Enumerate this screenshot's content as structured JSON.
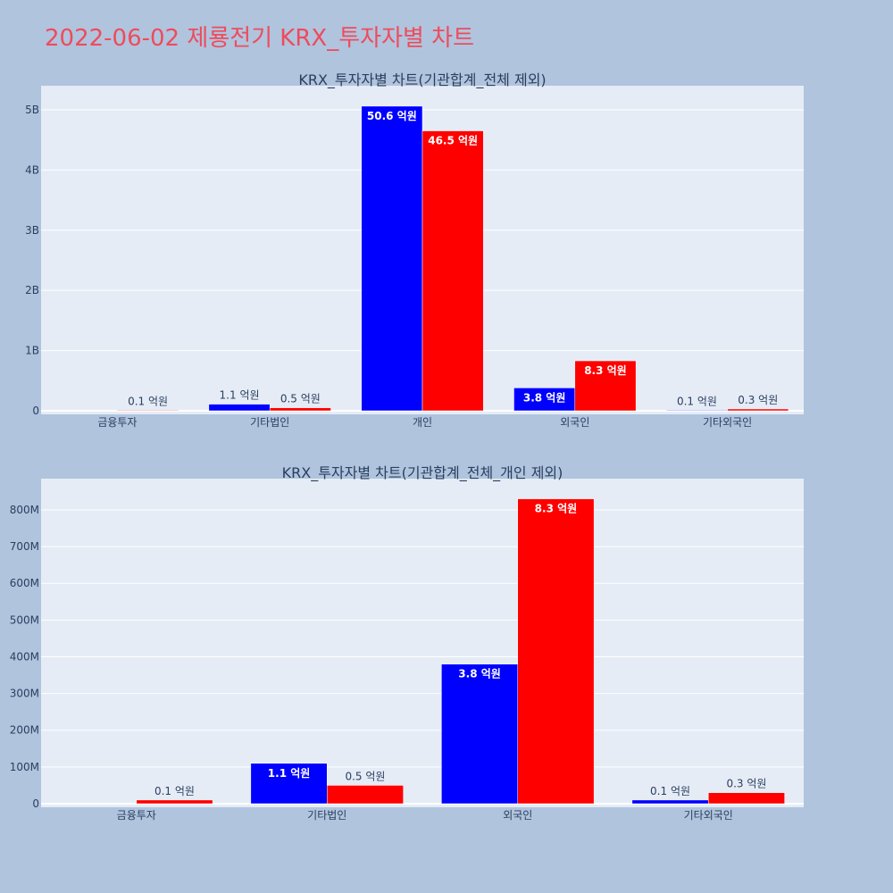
{
  "page": {
    "title": "2022-06-02 제룡전기 KRX_투자자별 차트",
    "colors": {
      "background": "#b0c4de",
      "plot_bg": "#e5ecf6",
      "title": "#ef4b5c",
      "text": "#2a3f5f",
      "buy": "#0000ff",
      "sell": "#ff0000"
    }
  },
  "chart_data": [
    {
      "type": "bar",
      "title": "KRX_투자자별 차트(기관합계_전체 제외)",
      "categories": [
        "금융투자",
        "기타법인",
        "개인",
        "외국인",
        "기타외국인"
      ],
      "series": [
        {
          "color": "#0000ff",
          "values": [
            0,
            110000000,
            5060000000,
            380000000,
            10000000
          ],
          "labels": [
            "",
            "1.1 억원",
            "50.6 억원",
            "3.8 억원",
            "0.1 억원"
          ]
        },
        {
          "color": "#ff0000",
          "values": [
            10000000,
            50000000,
            4650000000,
            830000000,
            30000000
          ],
          "labels": [
            "0.1 억원",
            "0.5 억원",
            "46.5 억원",
            "8.3 억원",
            "0.3 억원"
          ]
        }
      ],
      "ylim": [
        0,
        5400000000
      ],
      "yticks": [
        0,
        1000000000,
        2000000000,
        3000000000,
        4000000000,
        5000000000
      ],
      "ytick_labels": [
        "0",
        "1B",
        "2B",
        "3B",
        "4B",
        "5B"
      ],
      "grid": true
    },
    {
      "type": "bar",
      "title": "KRX_투자자별 차트(기관합계_전체_개인 제외)",
      "categories": [
        "금융투자",
        "기타법인",
        "외국인",
        "기타외국인"
      ],
      "series": [
        {
          "color": "#0000ff",
          "values": [
            0,
            110000000,
            380000000,
            10000000
          ],
          "labels": [
            "",
            "1.1 억원",
            "3.8 억원",
            "0.1 억원"
          ]
        },
        {
          "color": "#ff0000",
          "values": [
            10000000,
            50000000,
            830000000,
            30000000
          ],
          "labels": [
            "0.1 억원",
            "0.5 억원",
            "8.3 억원",
            "0.3 억원"
          ]
        }
      ],
      "ylim": [
        0,
        885000000
      ],
      "yticks": [
        0,
        100000000,
        200000000,
        300000000,
        400000000,
        500000000,
        600000000,
        700000000,
        800000000
      ],
      "ytick_labels": [
        "0",
        "100M",
        "200M",
        "300M",
        "400M",
        "500M",
        "600M",
        "700M",
        "800M"
      ],
      "grid": true
    }
  ]
}
